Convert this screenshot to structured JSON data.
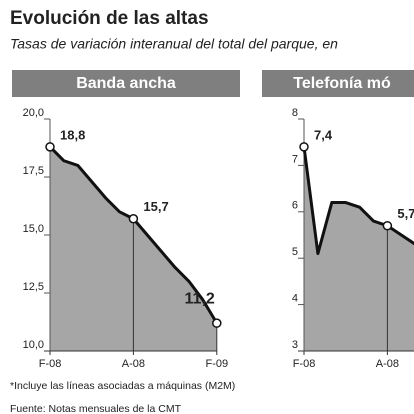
{
  "title": "Evolución de las altas",
  "subtitle": "Tasas de variación interanual del total del parque, en",
  "footnote": "*Incluye las líneas asociadas a máquinas (M2M)",
  "source": "Fuente: Notas mensuales de la CMT",
  "chart_data": [
    {
      "type": "area",
      "title": "Banda ancha",
      "color": "#a6a6a6",
      "categories": [
        "F-08",
        null,
        null,
        null,
        null,
        null,
        "A-08",
        null,
        null,
        null,
        null,
        null,
        "F-09"
      ],
      "values": [
        18.8,
        18.2,
        18.0,
        17.3,
        16.6,
        16.0,
        15.7,
        15.0,
        14.3,
        13.6,
        13.0,
        12.2,
        11.2
      ],
      "value_labels": [
        "18,8",
        null,
        null,
        null,
        null,
        null,
        "15,7",
        null,
        null,
        null,
        null,
        null,
        "11,2"
      ],
      "ylim": [
        10,
        20
      ],
      "yticks": [
        {
          "value": 10,
          "label": "10,0"
        },
        {
          "value": 12.5,
          "label": "12,5"
        },
        {
          "value": 15,
          "label": "15,0"
        },
        {
          "value": 17.5,
          "label": "17,5"
        },
        {
          "value": 20,
          "label": "20,0"
        }
      ]
    },
    {
      "type": "area",
      "title": "Telefonía mó",
      "color": "#a6a6a6",
      "categories": [
        "F-08",
        null,
        null,
        null,
        null,
        null,
        "A-08",
        null,
        null
      ],
      "values": [
        7.4,
        5.1,
        6.2,
        6.2,
        6.1,
        5.8,
        5.7,
        5.5,
        5.3
      ],
      "value_labels": [
        "7,4",
        null,
        null,
        null,
        null,
        null,
        "5,7",
        null,
        null
      ],
      "ylim": [
        3,
        8
      ],
      "yticks": [
        3,
        4,
        5,
        6,
        7,
        8
      ]
    }
  ]
}
